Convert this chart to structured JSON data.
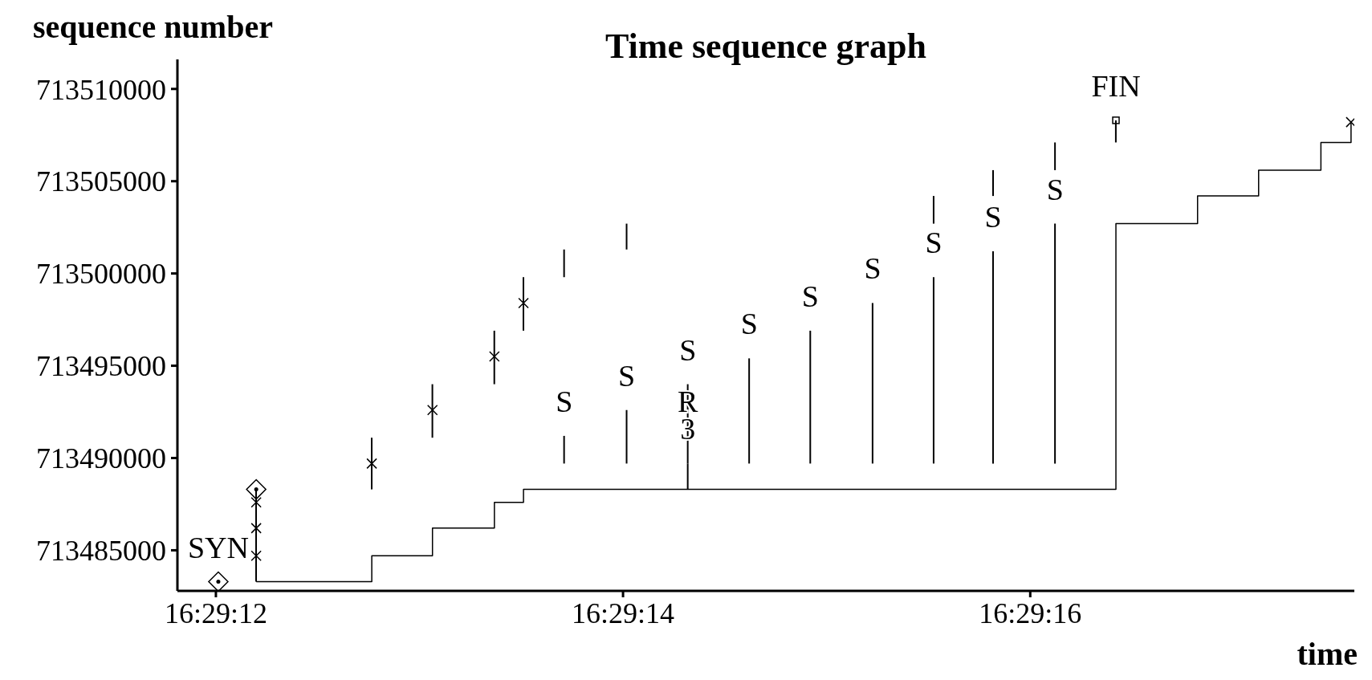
{
  "chart_data": {
    "type": "step",
    "title": "Time sequence graph",
    "ylabel": "sequence number",
    "xlabel": "time",
    "xlim": [
      16.4866142,
      16.48822
    ],
    "xticks": [
      {
        "value": 16.4866667,
        "label": "16:29:12"
      },
      {
        "value": 16.4872222,
        "label": "16:29:14"
      },
      {
        "value": 16.4877778,
        "label": "16:29:16"
      }
    ],
    "ylim": [
      713482800,
      713511600
    ],
    "yticks": [
      713485000,
      713490000,
      713495000,
      713500000,
      713505000,
      713510000
    ],
    "series": [
      {
        "color": "#000000",
        "marker": "none",
        "x": [
          16.4867217,
          16.4868794,
          16.4869622,
          16.4870467,
          16.4870864,
          16.4878947,
          16.4880061,
          16.4880894,
          16.4881744,
          16.4882155
        ],
        "values": [
          713483300,
          713484700,
          713486200,
          713487600,
          713488300,
          713502700,
          713504200,
          713505600,
          713507100,
          713508200
        ]
      },
      {
        "type": "bar",
        "color": "#000000",
        "x": [
          16.4867217,
          16.4868794,
          16.4869622,
          16.4870467,
          16.4870864,
          16.4871419,
          16.4872272,
          16.4873106,
          16.4876461,
          16.4877272,
          16.4878117,
          16.4878947
        ],
        "base": [
          713483300,
          713488300,
          713491100,
          713494000,
          713496900,
          713499800,
          713501300,
          713488300,
          713502700,
          713504200,
          713505600,
          713507100
        ],
        "values": [
          5000,
          2800,
          2900,
          2900,
          2900,
          1500,
          1400,
          1400,
          1500,
          1400,
          1500,
          1200
        ]
      },
      {
        "type": "bar",
        "color": "#000000",
        "x": [
          16.4871419,
          16.4872272,
          16.4873106,
          16.4873944,
          16.4874778,
          16.4875628,
          16.4876461,
          16.4877272,
          16.4878117
        ],
        "base": [
          713489700,
          713489700,
          713489700,
          713489700,
          713489700,
          713489700,
          713489700,
          713489700,
          713489700
        ],
        "values": [
          1500,
          2900,
          4300,
          5700,
          7200,
          8700,
          10100,
          11500,
          13000
        ]
      },
      {
        "type": "scatter",
        "color": "#000000",
        "marker": "cross",
        "x": [
          16.4867217,
          16.4867217,
          16.4867217,
          16.4868794,
          16.4869622,
          16.4870467,
          16.4870864,
          16.4882155
        ],
        "values": [
          713484700,
          713486200,
          713487600,
          713489700,
          713492600,
          713495500,
          713498400,
          713508200
        ]
      },
      {
        "type": "scatter",
        "color": "#000000",
        "marker": "diamond",
        "x": [
          16.48667,
          16.4867217
        ],
        "values": [
          713483300,
          713488300
        ]
      },
      {
        "type": "scatter",
        "color": "#000000",
        "marker": "square",
        "x": [
          16.4878947
        ],
        "values": [
          713508300
        ]
      }
    ],
    "annotations": [
      {
        "text": "SYN",
        "x": 16.48667,
        "y": 713483300
      },
      {
        "text": "FIN",
        "x": 16.4878947,
        "y": 713508300
      },
      {
        "text": "S",
        "x": 16.4871419,
        "y": 713491200
      },
      {
        "text": "S",
        "x": 16.4872272,
        "y": 713492600
      },
      {
        "text": "S",
        "x": 16.4873106,
        "y": 713494000
      },
      {
        "text": "S",
        "x": 16.4873944,
        "y": 713495400
      },
      {
        "text": "S",
        "x": 16.4874778,
        "y": 713496900
      },
      {
        "text": "S",
        "x": 16.4875628,
        "y": 713498400
      },
      {
        "text": "S",
        "x": 16.4876461,
        "y": 713499800
      },
      {
        "text": "S",
        "x": 16.4877272,
        "y": 713501200
      },
      {
        "text": "S",
        "x": 16.4878117,
        "y": 713502700
      },
      {
        "text": "R\n3",
        "x": 16.4873106,
        "y": 713489700
      }
    ]
  }
}
